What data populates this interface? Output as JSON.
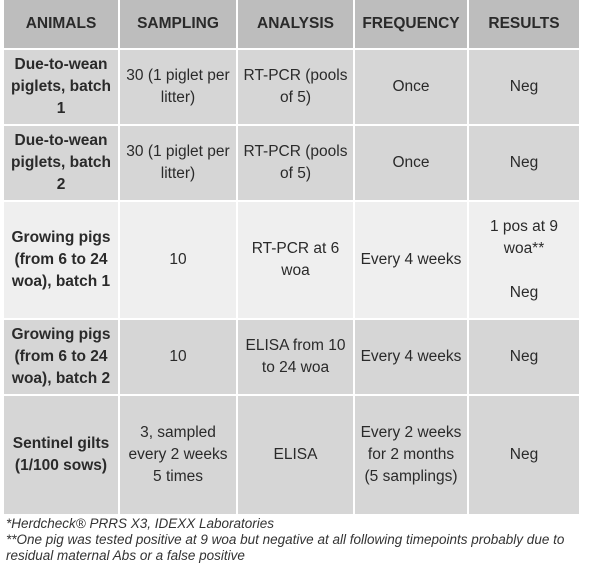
{
  "headers": [
    "ANIMALS",
    "SAMPLING",
    "ANALYSIS",
    "FREQUENCY",
    "RESULTS"
  ],
  "rows": [
    {
      "animals": "Due-to-wean piglets, batch 1",
      "sampling": "30 (1 piglet per litter)",
      "analysis": "RT-PCR (pools of 5)",
      "frequency": "Once",
      "results": "Neg"
    },
    {
      "animals": "Due-to-wean piglets, batch 2",
      "sampling": "30 (1 piglet per litter)",
      "analysis": "RT-PCR (pools of 5)",
      "frequency": "Once",
      "results": "Neg"
    },
    {
      "animals": "Growing pigs (from 6 to 24 woa), batch 1",
      "sampling": "10",
      "analysis": "RT-PCR at 6 woa",
      "frequency": "Every 4 weeks",
      "results_line1": "1 pos at 9 woa**",
      "results_line2": "Neg"
    },
    {
      "animals": "Growing pigs (from 6 to 24 woa), batch 2",
      "sampling": "10",
      "analysis": "ELISA from 10 to 24 woa",
      "frequency": "Every 4 weeks",
      "results": "Neg"
    },
    {
      "animals": "Sentinel gilts (1/100 sows)",
      "sampling": "3, sampled every 2 weeks 5 times",
      "analysis": "ELISA",
      "frequency": "Every 2 weeks for 2 months (5 samplings)",
      "results": "Neg"
    }
  ],
  "footnotes": [
    "*Herdcheck® PRRS X3, IDEXX Laboratories",
    "**One pig was tested positive at 9 woa but negative at all following timepoints probably due to residual maternal Abs or a false positive"
  ]
}
